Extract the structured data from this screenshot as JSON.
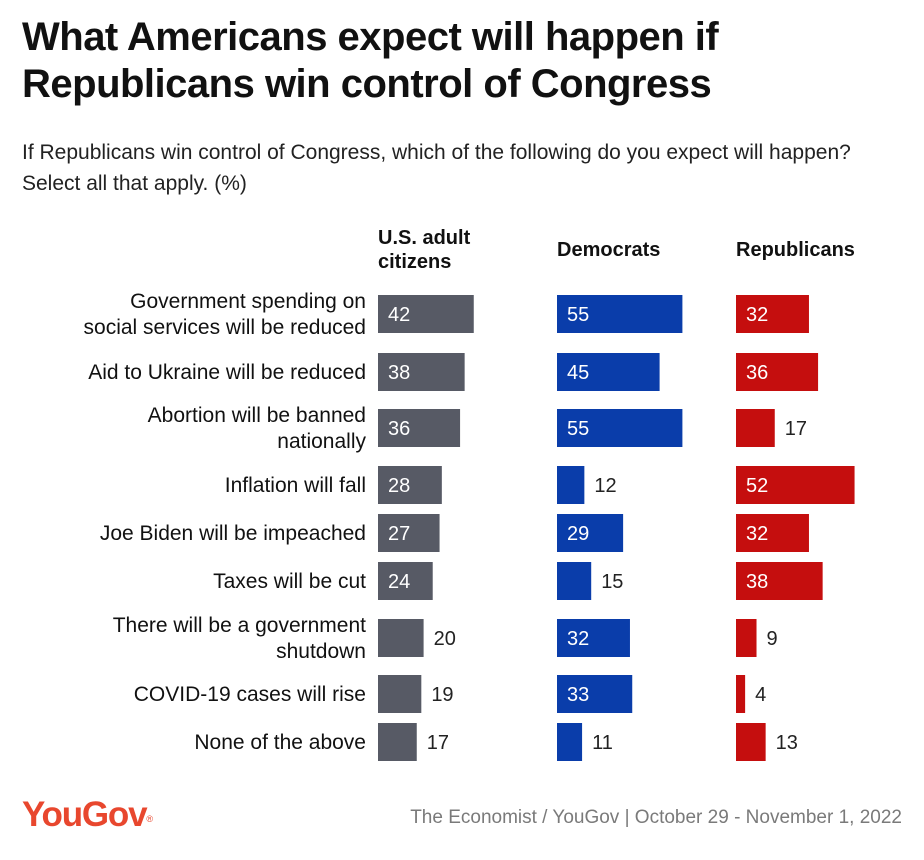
{
  "title": "What Americans expect will happen if Republicans win control of Congress",
  "subtitle": "If Republicans win control of Congress, which of the following do you expect will happen? Select all that apply. (%)",
  "source": "The Economist / YouGov | October 29 - November 1, 2022",
  "logo": {
    "text": "YouGov",
    "mark": "®"
  },
  "colors": {
    "adults": "#575a65",
    "democrats": "#0a3daa",
    "republicans": "#c50e0e",
    "label_text": "#111111",
    "logo": "#e8472e"
  },
  "chart_data": {
    "type": "bar",
    "orientation": "horizontal",
    "xlim": [
      0,
      100
    ],
    "categories": [
      "Government spending on social services will be reduced",
      "Aid to Ukraine will be reduced",
      "Abortion will be banned nationally",
      "Inflation will fall",
      "Joe Biden will be impeached",
      "Taxes will be cut",
      "There will be a government shutdown",
      "COVID-19 cases will rise",
      "None of the above"
    ],
    "series": [
      {
        "name": "U.S. adult citizens",
        "color": "#575a65",
        "values": [
          42,
          38,
          36,
          28,
          27,
          24,
          20,
          19,
          17
        ]
      },
      {
        "name": "Democrats",
        "color": "#0a3daa",
        "values": [
          55,
          45,
          55,
          12,
          29,
          15,
          32,
          33,
          11
        ]
      },
      {
        "name": "Republicans",
        "color": "#c50e0e",
        "values": [
          32,
          36,
          17,
          52,
          32,
          38,
          9,
          4,
          13
        ]
      }
    ],
    "grid": false,
    "legend": "column headers"
  }
}
